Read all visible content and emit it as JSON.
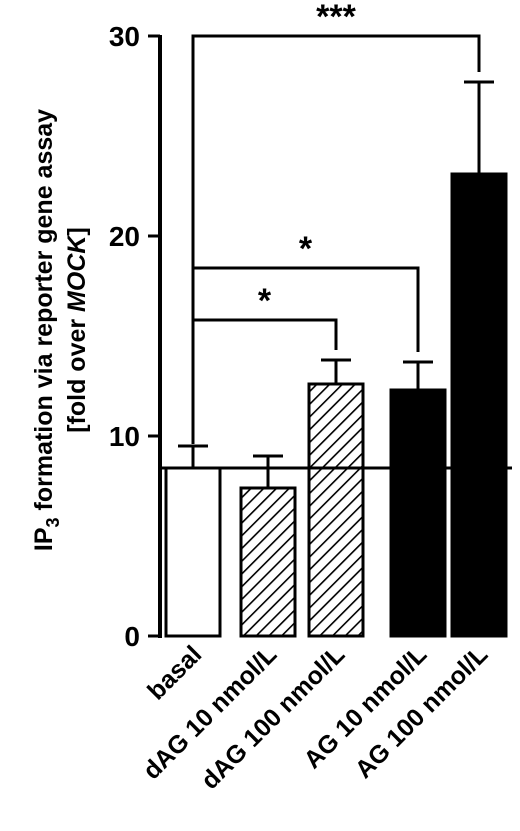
{
  "chart_data": {
    "type": "bar",
    "categories": [
      "basal",
      "dAG 10 nmol/L",
      "dAG 100 nmol/L",
      "AG 10 nmol/L",
      "AG 100 nmol/L"
    ],
    "values": [
      8.4,
      7.4,
      12.6,
      12.3,
      23.1
    ],
    "errors": [
      1.1,
      1.6,
      1.2,
      1.4,
      4.6
    ],
    "fills": [
      "white",
      "hatched",
      "hatched",
      "black",
      "black"
    ],
    "ylabel_main": "IP",
    "ylabel_sub": "3",
    "ylabel_rest": " formation via reporter gene assay",
    "ylabel_line2_pre": "[fold over ",
    "ylabel_line2_italic": "MOCK",
    "ylabel_line2_post": "]",
    "ylim": [
      0,
      30
    ],
    "yticks": [
      "0",
      "10",
      "20",
      "30"
    ],
    "baseline_value": 8.4,
    "significance": [
      {
        "from": 0,
        "to": 2,
        "bracket_y": 15.8,
        "label": "*"
      },
      {
        "from": 0,
        "to": 3,
        "bracket_y": 18.4,
        "label": "*"
      },
      {
        "from": 0,
        "to": 4,
        "bracket_y": 30.0,
        "label": "***"
      }
    ],
    "grid": false,
    "legend": "none"
  }
}
